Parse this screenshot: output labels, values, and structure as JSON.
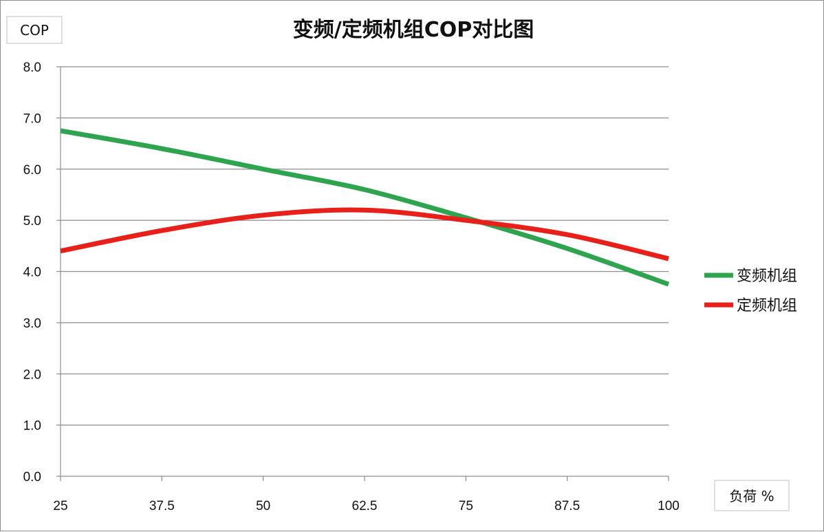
{
  "chart_data": {
    "type": "line",
    "title": "变频/定频机组COP对比图",
    "ylabel": "COP",
    "xlabel": "负荷 %",
    "x": [
      25,
      37.5,
      50,
      62.5,
      75,
      87.5,
      100
    ],
    "x_tick_labels": [
      "25",
      "37.5",
      "50",
      "62.5",
      "75",
      "87.5",
      "100"
    ],
    "y_tick_labels": [
      "0.0",
      "1.0",
      "2.0",
      "3.0",
      "4.0",
      "5.0",
      "6.0",
      "7.0",
      "8.0"
    ],
    "ylim": [
      0,
      8
    ],
    "xlim": [
      25,
      100
    ],
    "grid": "horizontal",
    "legend_position": "right",
    "series": [
      {
        "name": "变频机组",
        "color": "#2ea44f",
        "values": [
          6.75,
          6.4,
          6.0,
          5.6,
          5.05,
          4.45,
          3.75
        ]
      },
      {
        "name": "定频机组",
        "color": "#e8201a",
        "values": [
          4.4,
          4.8,
          5.1,
          5.2,
          5.0,
          4.72,
          4.25
        ]
      }
    ]
  }
}
